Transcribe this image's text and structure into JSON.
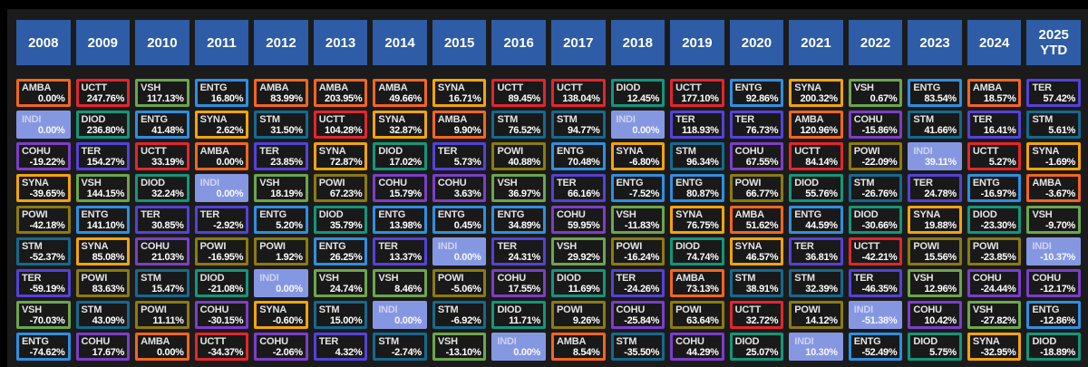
{
  "theme": {
    "page_bg": "#000000",
    "panel_bg": "#1b1b1b",
    "cell_bg": "#191919",
    "header_bg": "#2e5ca6",
    "header_text": "#ffffff",
    "ticker_text": "#e4e4e4",
    "value_text": "#ffffff"
  },
  "ticker_colors": {
    "AMBA": "#f2661e",
    "UCTT": "#e2262c",
    "VSH": "#6ca64c",
    "ENTG": "#2e8fe0",
    "SYNA": "#f2a40a",
    "INDI": "#8697e2",
    "DIOD": "#13967b",
    "COHU": "#7c3ec8",
    "POWI": "#8c7a12",
    "STM": "#15698e",
    "TER": "#5442d8"
  },
  "highlight": {
    "ticker": "INDI",
    "fill": "#8697e2"
  },
  "chart_data": {
    "type": "table",
    "description_visible": false,
    "columns": [
      "2008",
      "2009",
      "2010",
      "2011",
      "2012",
      "2013",
      "2014",
      "2015",
      "2016",
      "2017",
      "2018",
      "2019",
      "2020",
      "2021",
      "2022",
      "2023",
      "2024",
      "2025 YTD"
    ],
    "rows": [
      [
        {
          "t": "AMBA",
          "v": "0.00%"
        },
        {
          "t": "UCTT",
          "v": "247.76%"
        },
        {
          "t": "VSH",
          "v": "117.13%"
        },
        {
          "t": "ENTG",
          "v": "16.80%"
        },
        {
          "t": "AMBA",
          "v": "83.99%"
        },
        {
          "t": "AMBA",
          "v": "203.95%"
        },
        {
          "t": "AMBA",
          "v": "49.66%"
        },
        {
          "t": "SYNA",
          "v": "16.71%"
        },
        {
          "t": "UCTT",
          "v": "89.45%"
        },
        {
          "t": "UCTT",
          "v": "138.04%"
        },
        {
          "t": "DIOD",
          "v": "12.45%"
        },
        {
          "t": "UCTT",
          "v": "177.10%"
        },
        {
          "t": "ENTG",
          "v": "92.86%"
        },
        {
          "t": "SYNA",
          "v": "200.32%"
        },
        {
          "t": "VSH",
          "v": "0.67%"
        },
        {
          "t": "ENTG",
          "v": "83.54%"
        },
        {
          "t": "AMBA",
          "v": "18.57%"
        },
        {
          "t": "TER",
          "v": "57.42%"
        }
      ],
      [
        {
          "t": "INDI",
          "v": "0.00%"
        },
        {
          "t": "DIOD",
          "v": "236.80%"
        },
        {
          "t": "ENTG",
          "v": "41.48%"
        },
        {
          "t": "SYNA",
          "v": "2.62%"
        },
        {
          "t": "STM",
          "v": "31.50%"
        },
        {
          "t": "UCTT",
          "v": "104.28%"
        },
        {
          "t": "SYNA",
          "v": "32.87%"
        },
        {
          "t": "AMBA",
          "v": "9.90%"
        },
        {
          "t": "STM",
          "v": "76.52%"
        },
        {
          "t": "STM",
          "v": "94.77%"
        },
        {
          "t": "INDI",
          "v": "0.00%"
        },
        {
          "t": "TER",
          "v": "118.93%"
        },
        {
          "t": "TER",
          "v": "76.73%"
        },
        {
          "t": "AMBA",
          "v": "120.96%"
        },
        {
          "t": "COHU",
          "v": "-15.86%"
        },
        {
          "t": "STM",
          "v": "41.66%"
        },
        {
          "t": "TER",
          "v": "16.41%"
        },
        {
          "t": "STM",
          "v": "5.61%"
        }
      ],
      [
        {
          "t": "COHU",
          "v": "-19.22%"
        },
        {
          "t": "TER",
          "v": "154.27%"
        },
        {
          "t": "UCTT",
          "v": "33.19%"
        },
        {
          "t": "AMBA",
          "v": "0.00%"
        },
        {
          "t": "TER",
          "v": "23.85%"
        },
        {
          "t": "SYNA",
          "v": "72.87%"
        },
        {
          "t": "DIOD",
          "v": "17.02%"
        },
        {
          "t": "TER",
          "v": "5.73%"
        },
        {
          "t": "POWI",
          "v": "40.88%"
        },
        {
          "t": "ENTG",
          "v": "70.48%"
        },
        {
          "t": "SYNA",
          "v": "-6.80%"
        },
        {
          "t": "STM",
          "v": "96.34%"
        },
        {
          "t": "COHU",
          "v": "67.55%"
        },
        {
          "t": "UCTT",
          "v": "84.14%"
        },
        {
          "t": "POWI",
          "v": "-22.09%"
        },
        {
          "t": "INDI",
          "v": "39.11%"
        },
        {
          "t": "UCTT",
          "v": "5.27%"
        },
        {
          "t": "SYNA",
          "v": "-1.69%"
        }
      ],
      [
        {
          "t": "SYNA",
          "v": "-39.65%"
        },
        {
          "t": "VSH",
          "v": "144.15%"
        },
        {
          "t": "DIOD",
          "v": "32.24%"
        },
        {
          "t": "INDI",
          "v": "0.00%"
        },
        {
          "t": "VSH",
          "v": "18.19%"
        },
        {
          "t": "POWI",
          "v": "67.23%"
        },
        {
          "t": "COHU",
          "v": "15.79%"
        },
        {
          "t": "COHU",
          "v": "3.63%"
        },
        {
          "t": "VSH",
          "v": "36.97%"
        },
        {
          "t": "TER",
          "v": "66.16%"
        },
        {
          "t": "ENTG",
          "v": "-7.52%"
        },
        {
          "t": "ENTG",
          "v": "80.87%"
        },
        {
          "t": "POWI",
          "v": "66.77%"
        },
        {
          "t": "DIOD",
          "v": "55.76%"
        },
        {
          "t": "STM",
          "v": "-26.76%"
        },
        {
          "t": "TER",
          "v": "24.78%"
        },
        {
          "t": "ENTG",
          "v": "-16.97%"
        },
        {
          "t": "AMBA",
          "v": "-3.67%"
        }
      ],
      [
        {
          "t": "POWI",
          "v": "-42.18%"
        },
        {
          "t": "ENTG",
          "v": "141.10%"
        },
        {
          "t": "TER",
          "v": "30.85%"
        },
        {
          "t": "TER",
          "v": "-2.92%"
        },
        {
          "t": "ENTG",
          "v": "5.20%"
        },
        {
          "t": "DIOD",
          "v": "35.79%"
        },
        {
          "t": "ENTG",
          "v": "13.98%"
        },
        {
          "t": "ENTG",
          "v": "0.45%"
        },
        {
          "t": "ENTG",
          "v": "34.89%"
        },
        {
          "t": "COHU",
          "v": "59.95%"
        },
        {
          "t": "VSH",
          "v": "-11.83%"
        },
        {
          "t": "SYNA",
          "v": "76.75%"
        },
        {
          "t": "AMBA",
          "v": "51.62%"
        },
        {
          "t": "ENTG",
          "v": "44.59%"
        },
        {
          "t": "DIOD",
          "v": "-30.66%"
        },
        {
          "t": "SYNA",
          "v": "19.88%"
        },
        {
          "t": "DIOD",
          "v": "-23.30%"
        },
        {
          "t": "VSH",
          "v": "-9.70%"
        }
      ],
      [
        {
          "t": "STM",
          "v": "-52.37%"
        },
        {
          "t": "SYNA",
          "v": "85.08%"
        },
        {
          "t": "COHU",
          "v": "21.03%"
        },
        {
          "t": "POWI",
          "v": "-16.95%"
        },
        {
          "t": "POWI",
          "v": "1.92%"
        },
        {
          "t": "ENTG",
          "v": "26.25%"
        },
        {
          "t": "TER",
          "v": "13.37%"
        },
        {
          "t": "INDI",
          "v": "0.00%"
        },
        {
          "t": "TER",
          "v": "24.31%"
        },
        {
          "t": "VSH",
          "v": "29.92%"
        },
        {
          "t": "POWI",
          "v": "-16.24%"
        },
        {
          "t": "DIOD",
          "v": "74.74%"
        },
        {
          "t": "SYNA",
          "v": "46.57%"
        },
        {
          "t": "TER",
          "v": "36.81%"
        },
        {
          "t": "UCTT",
          "v": "-42.21%"
        },
        {
          "t": "POWI",
          "v": "15.56%"
        },
        {
          "t": "POWI",
          "v": "-23.85%"
        },
        {
          "t": "INDI",
          "v": "-10.37%"
        }
      ],
      [
        {
          "t": "TER",
          "v": "-59.19%"
        },
        {
          "t": "POWI",
          "v": "83.63%"
        },
        {
          "t": "STM",
          "v": "15.47%"
        },
        {
          "t": "DIOD",
          "v": "-21.08%"
        },
        {
          "t": "INDI",
          "v": "0.00%"
        },
        {
          "t": "VSH",
          "v": "24.74%"
        },
        {
          "t": "VSH",
          "v": "8.46%"
        },
        {
          "t": "POWI",
          "v": "-5.06%"
        },
        {
          "t": "COHU",
          "v": "17.55%"
        },
        {
          "t": "DIOD",
          "v": "11.69%"
        },
        {
          "t": "TER",
          "v": "-24.26%"
        },
        {
          "t": "AMBA",
          "v": "73.13%"
        },
        {
          "t": "STM",
          "v": "38.91%"
        },
        {
          "t": "STM",
          "v": "32.39%"
        },
        {
          "t": "TER",
          "v": "-46.35%"
        },
        {
          "t": "VSH",
          "v": "12.96%"
        },
        {
          "t": "COHU",
          "v": "-24.44%"
        },
        {
          "t": "COHU",
          "v": "-12.17%"
        }
      ],
      [
        {
          "t": "VSH",
          "v": "-70.03%"
        },
        {
          "t": "STM",
          "v": "43.09%"
        },
        {
          "t": "POWI",
          "v": "11.11%"
        },
        {
          "t": "COHU",
          "v": "-30.15%"
        },
        {
          "t": "SYNA",
          "v": "-0.60%"
        },
        {
          "t": "STM",
          "v": "15.00%"
        },
        {
          "t": "INDI",
          "v": "0.00%"
        },
        {
          "t": "STM",
          "v": "-6.92%"
        },
        {
          "t": "DIOD",
          "v": "11.71%"
        },
        {
          "t": "POWI",
          "v": "9.26%"
        },
        {
          "t": "COHU",
          "v": "-25.84%"
        },
        {
          "t": "POWI",
          "v": "63.64%"
        },
        {
          "t": "UCTT",
          "v": "32.72%"
        },
        {
          "t": "POWI",
          "v": "14.12%"
        },
        {
          "t": "INDI",
          "v": "-51.38%"
        },
        {
          "t": "COHU",
          "v": "10.42%"
        },
        {
          "t": "VSH",
          "v": "-27.82%"
        },
        {
          "t": "ENTG",
          "v": "-12.86%"
        }
      ],
      [
        {
          "t": "ENTG",
          "v": "-74.62%"
        },
        {
          "t": "COHU",
          "v": "17.67%"
        },
        {
          "t": "AMBA",
          "v": "0.00%"
        },
        {
          "t": "UCTT",
          "v": "-34.37%"
        },
        {
          "t": "COHU",
          "v": "-2.06%"
        },
        {
          "t": "TER",
          "v": "4.32%"
        },
        {
          "t": "STM",
          "v": "-2.74%"
        },
        {
          "t": "VSH",
          "v": "-13.10%"
        },
        {
          "t": "INDI",
          "v": "0.00%"
        },
        {
          "t": "AMBA",
          "v": "8.54%"
        },
        {
          "t": "STM",
          "v": "-35.50%"
        },
        {
          "t": "COHU",
          "v": "44.29%"
        },
        {
          "t": "DIOD",
          "v": "25.07%"
        },
        {
          "t": "INDI",
          "v": "10.30%"
        },
        {
          "t": "ENTG",
          "v": "-52.49%"
        },
        {
          "t": "DIOD",
          "v": "5.75%"
        },
        {
          "t": "SYNA",
          "v": "-32.95%"
        },
        {
          "t": "DIOD",
          "v": "-18.89%"
        }
      ]
    ]
  }
}
